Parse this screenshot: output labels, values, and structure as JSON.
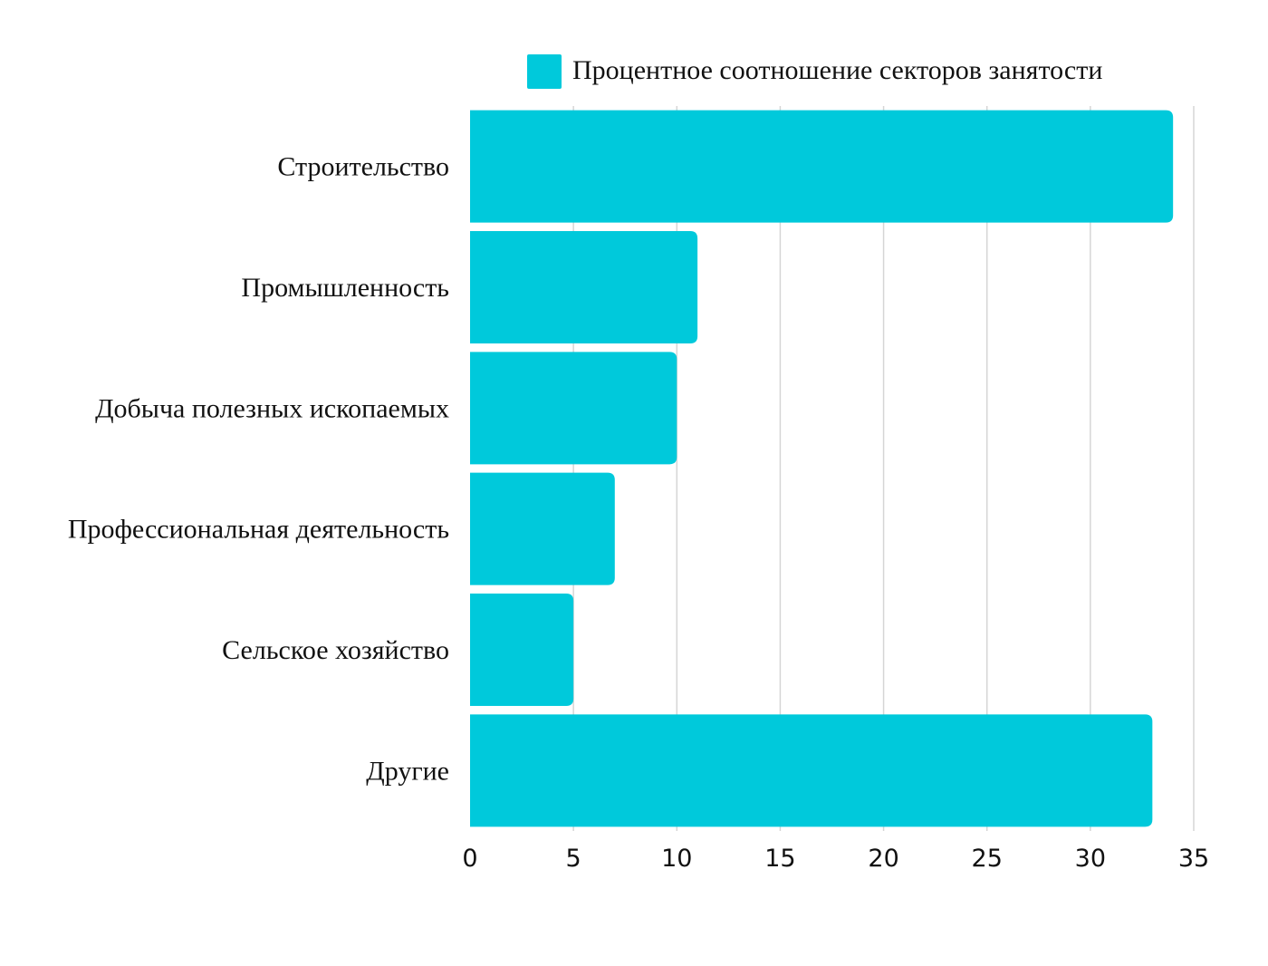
{
  "chart_data": {
    "type": "bar",
    "orientation": "horizontal",
    "categories": [
      "Строительство",
      "Промышленность",
      "Добыча полезных ископаемых",
      "Профессиональная деятельность",
      "Сельское хозяйство",
      "Другие"
    ],
    "series": [
      {
        "name": "Процентное соотношение секторов занятости",
        "values": [
          34,
          11,
          10,
          7,
          5,
          33
        ]
      }
    ],
    "x_ticks": [
      "0",
      "5",
      "10",
      "15",
      "20",
      "25",
      "30",
      "35"
    ],
    "xlim": [
      0,
      35
    ],
    "grid": true,
    "legend_position": "top",
    "bar_color": "#00C9DB",
    "grid_color": "#D5D5D5"
  }
}
